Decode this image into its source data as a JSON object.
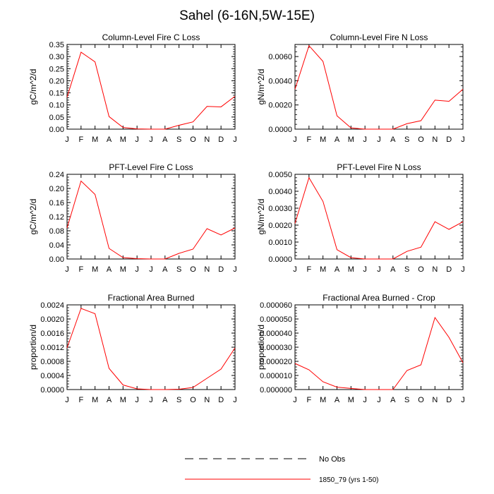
{
  "title": "Sahel (6-16N,5W-15E)",
  "legend": {
    "no_obs_label": "No Obs",
    "model_label": "1850_79 (yrs 1-50)",
    "model_color": "#ff0000",
    "no_obs_color": "#000000"
  },
  "chart_data": [
    {
      "type": "line",
      "title": "Column-Level Fire C Loss",
      "ylabel": "gC/m^2/d",
      "categories": [
        "J",
        "F",
        "M",
        "A",
        "M",
        "J",
        "J",
        "A",
        "S",
        "O",
        "N",
        "D",
        "J"
      ],
      "ylim": [
        0,
        0.35
      ],
      "yticks": [
        "0.00",
        "0.05",
        "0.10",
        "0.15",
        "0.20",
        "0.25",
        "0.30",
        "0.35"
      ],
      "ytick_values": [
        0,
        0.05,
        0.1,
        0.15,
        0.2,
        0.25,
        0.3,
        0.35
      ],
      "series": [
        {
          "name": "1850_79 (yrs 1-50)",
          "values": [
            0.132,
            0.318,
            0.278,
            0.052,
            0.007,
            0.001,
            0.0,
            0.0,
            0.016,
            0.03,
            0.094,
            0.092,
            0.136
          ]
        }
      ]
    },
    {
      "type": "line",
      "title": "Column-Level Fire N Loss",
      "ylabel": "gN/m^2/d",
      "categories": [
        "J",
        "F",
        "M",
        "A",
        "M",
        "J",
        "J",
        "A",
        "S",
        "O",
        "N",
        "D",
        "J"
      ],
      "ylim": [
        0,
        0.007
      ],
      "yticks": [
        "0.0000",
        "0.0020",
        "0.0040",
        "0.0060"
      ],
      "ytick_values": [
        0,
        0.002,
        0.004,
        0.006
      ],
      "series": [
        {
          "name": "1850_79 (yrs 1-50)",
          "values": [
            0.0033,
            0.0069,
            0.0056,
            0.0011,
            0.0001,
            0.0,
            0.0,
            0.0,
            0.00045,
            0.0007,
            0.0024,
            0.0023,
            0.0033
          ]
        }
      ]
    },
    {
      "type": "line",
      "title": "PFT-Level Fire C Loss",
      "ylabel": "gC/m^2/d",
      "categories": [
        "J",
        "F",
        "M",
        "A",
        "M",
        "J",
        "J",
        "A",
        "S",
        "O",
        "N",
        "D",
        "J"
      ],
      "ylim": [
        0,
        0.24
      ],
      "yticks": [
        "0.00",
        "0.04",
        "0.08",
        "0.12",
        "0.16",
        "0.20",
        "0.24"
      ],
      "ytick_values": [
        0,
        0.04,
        0.08,
        0.12,
        0.16,
        0.2,
        0.24
      ],
      "series": [
        {
          "name": "1850_79 (yrs 1-50)",
          "values": [
            0.088,
            0.221,
            0.183,
            0.03,
            0.004,
            0.001,
            0.0,
            0.0,
            0.016,
            0.028,
            0.086,
            0.068,
            0.088
          ]
        }
      ]
    },
    {
      "type": "line",
      "title": "PFT-Level Fire N Loss",
      "ylabel": "gN/m^2/d",
      "categories": [
        "J",
        "F",
        "M",
        "A",
        "M",
        "J",
        "J",
        "A",
        "S",
        "O",
        "N",
        "D",
        "J"
      ],
      "ylim": [
        0,
        0.005
      ],
      "yticks": [
        "0.0000",
        "0.0010",
        "0.0020",
        "0.0030",
        "0.0040",
        "0.0050"
      ],
      "ytick_values": [
        0,
        0.001,
        0.002,
        0.003,
        0.004,
        0.005
      ],
      "series": [
        {
          "name": "1850_79 (yrs 1-50)",
          "values": [
            0.0021,
            0.0048,
            0.0034,
            0.00055,
            8e-05,
            0.0,
            0.0,
            0.0,
            0.00045,
            0.0007,
            0.0022,
            0.00175,
            0.0022
          ]
        }
      ]
    },
    {
      "type": "line",
      "title": "Fractional Area Burned",
      "ylabel": "proportion/d",
      "categories": [
        "J",
        "F",
        "M",
        "A",
        "M",
        "J",
        "J",
        "A",
        "S",
        "O",
        "N",
        "D",
        "J"
      ],
      "ylim": [
        0,
        0.0024
      ],
      "yticks": [
        "0.0000",
        "0.0004",
        "0.0008",
        "0.0012",
        "0.0016",
        "0.0020",
        "0.0024"
      ],
      "ytick_values": [
        0,
        0.0004,
        0.0008,
        0.0012,
        0.0016,
        0.002,
        0.0024
      ],
      "series": [
        {
          "name": "1850_79 (yrs 1-50)",
          "values": [
            0.00118,
            0.0023,
            0.00215,
            0.0006,
            0.00013,
            2e-05,
            0.0,
            0.0,
            1e-05,
            6e-05,
            0.00032,
            0.00058,
            0.00118
          ]
        }
      ]
    },
    {
      "type": "line",
      "title": "Fractional Area Burned - Crop",
      "ylabel": "proportion/d",
      "categories": [
        "J",
        "F",
        "M",
        "A",
        "M",
        "J",
        "J",
        "A",
        "S",
        "O",
        "N",
        "D",
        "J"
      ],
      "ylim": [
        0,
        6e-05
      ],
      "yticks": [
        "0.000000",
        "0.000010",
        "0.000020",
        "0.000030",
        "0.000040",
        "0.000050",
        "0.000060"
      ],
      "ytick_values": [
        0,
        1e-05,
        2e-05,
        3e-05,
        4e-05,
        5e-05,
        6e-05
      ],
      "series": [
        {
          "name": "1850_79 (yrs 1-50)",
          "values": [
            1.85e-05,
            1.4e-05,
            5.5e-06,
            1.7e-06,
            8e-07,
            0.0,
            0.0,
            0.0,
            1.35e-05,
            1.75e-05,
            5.1e-05,
            3.7e-05,
            1.9e-05
          ]
        }
      ]
    }
  ]
}
